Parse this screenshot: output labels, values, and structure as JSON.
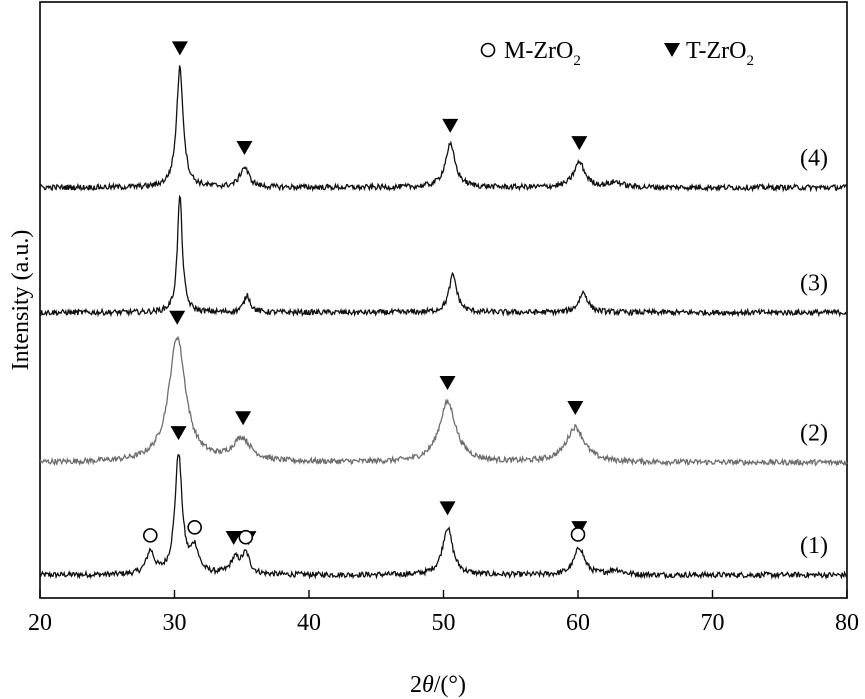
{
  "chart_data": {
    "type": "line",
    "title": "",
    "xlabel_prefix": "2",
    "xlabel_var": "θ",
    "xlabel_suffix": "/(°)",
    "ylabel": "Intensity (a.u.)",
    "xlim": [
      20,
      80
    ],
    "xticks": [
      20,
      30,
      40,
      50,
      60,
      70,
      80
    ],
    "yticks_shown": false,
    "grid": false,
    "legend": {
      "placement": "top-right",
      "entries": [
        {
          "marker": "open-circle",
          "main": "M-ZrO",
          "sub": "2"
        },
        {
          "marker": "filled-down-triangle",
          "main": "T-ZrO",
          "sub": "2"
        }
      ]
    },
    "series": [
      {
        "name": "(1)",
        "color": "#111111",
        "baseline": 0.0,
        "peaks": [
          {
            "x": 28.2,
            "height": 0.09,
            "width": 0.35
          },
          {
            "x": 30.3,
            "height": 0.48,
            "width": 0.32
          },
          {
            "x": 31.5,
            "height": 0.1,
            "width": 0.35
          },
          {
            "x": 34.5,
            "height": 0.06,
            "width": 0.4
          },
          {
            "x": 35.3,
            "height": 0.08,
            "width": 0.35
          },
          {
            "x": 50.3,
            "height": 0.19,
            "width": 0.45
          },
          {
            "x": 60.1,
            "height": 0.11,
            "width": 0.45
          },
          {
            "x": 62.8,
            "height": 0.02,
            "width": 0.6
          }
        ],
        "markers": [
          {
            "x": 28.2,
            "type": "open-circle"
          },
          {
            "x": 30.3,
            "type": "filled-down-triangle"
          },
          {
            "x": 31.5,
            "type": "open-circle"
          },
          {
            "x": 34.4,
            "type": "filled-down-triangle"
          },
          {
            "x": 35.5,
            "type": "filled-down-triangle"
          },
          {
            "x": 35.3,
            "type": "open-circle"
          },
          {
            "x": 50.3,
            "type": "filled-down-triangle"
          },
          {
            "x": 60.1,
            "type": "filled-down-triangle"
          },
          {
            "x": 60.0,
            "type": "open-circle"
          }
        ]
      },
      {
        "name": "(2)",
        "color": "#6e6e6e",
        "baseline": 0.45,
        "peaks": [
          {
            "x": 30.2,
            "height": 0.5,
            "width": 0.75
          },
          {
            "x": 35.0,
            "height": 0.09,
            "width": 0.8
          },
          {
            "x": 50.3,
            "height": 0.24,
            "width": 0.75
          },
          {
            "x": 59.8,
            "height": 0.14,
            "width": 0.8
          }
        ],
        "markers": [
          {
            "x": 30.2,
            "type": "filled-down-triangle"
          },
          {
            "x": 35.1,
            "type": "filled-down-triangle"
          },
          {
            "x": 50.3,
            "type": "filled-down-triangle"
          },
          {
            "x": 59.8,
            "type": "filled-down-triangle"
          }
        ]
      },
      {
        "name": "(3)",
        "color": "#111111",
        "baseline": 1.05,
        "peaks": [
          {
            "x": 30.4,
            "height": 0.47,
            "width": 0.22
          },
          {
            "x": 35.4,
            "height": 0.07,
            "width": 0.28
          },
          {
            "x": 50.7,
            "height": 0.15,
            "width": 0.35
          },
          {
            "x": 60.4,
            "height": 0.08,
            "width": 0.4
          }
        ],
        "markers": []
      },
      {
        "name": "(4)",
        "color": "#111111",
        "baseline": 1.55,
        "peaks": [
          {
            "x": 30.4,
            "height": 0.48,
            "width": 0.3
          },
          {
            "x": 35.2,
            "height": 0.08,
            "width": 0.4
          },
          {
            "x": 50.5,
            "height": 0.17,
            "width": 0.45
          },
          {
            "x": 60.1,
            "height": 0.1,
            "width": 0.5
          },
          {
            "x": 62.8,
            "height": 0.02,
            "width": 0.6
          }
        ],
        "markers": [
          {
            "x": 30.4,
            "type": "filled-down-triangle"
          },
          {
            "x": 35.2,
            "type": "filled-down-triangle"
          },
          {
            "x": 50.5,
            "type": "filled-down-triangle"
          },
          {
            "x": 60.1,
            "type": "filled-down-triangle"
          }
        ]
      }
    ]
  }
}
